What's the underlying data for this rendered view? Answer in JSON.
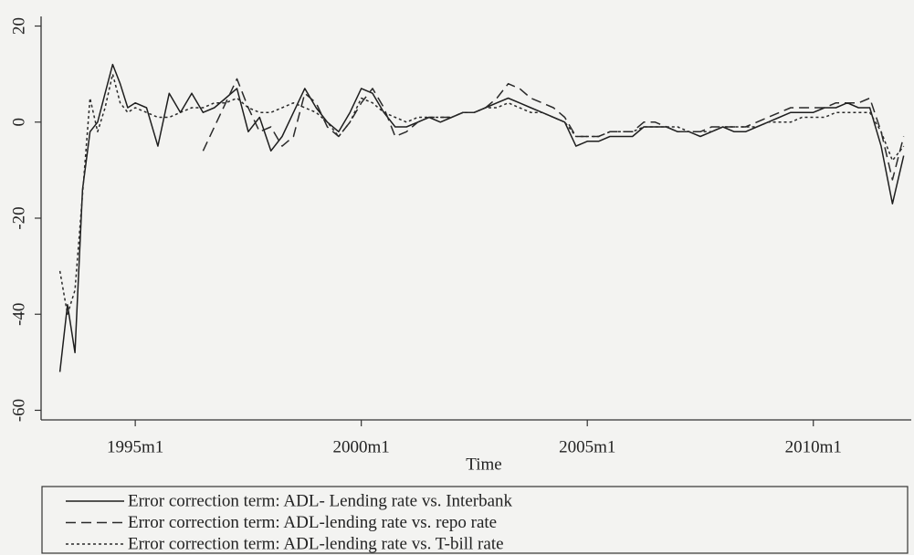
{
  "chart_data": {
    "type": "line",
    "x_label": "Time",
    "x": [
      "1993m5",
      "1993m7",
      "1993m9",
      "1993m11",
      "1994m1",
      "1994m3",
      "1994m5",
      "1994m7",
      "1994m9",
      "1994m11",
      "1995m1",
      "1995m4",
      "1995m7",
      "1995m10",
      "1996m1",
      "1996m4",
      "1996m7",
      "1996m10",
      "1997m1",
      "1997m4",
      "1997m7",
      "1997m10",
      "1998m1",
      "1998m4",
      "1998m7",
      "1998m10",
      "1999m1",
      "1999m4",
      "1999m7",
      "1999m10",
      "2000m1",
      "2000m4",
      "2000m7",
      "2000m10",
      "2001m1",
      "2001m4",
      "2001m7",
      "2001m10",
      "2002m1",
      "2002m4",
      "2002m7",
      "2002m10",
      "2003m1",
      "2003m4",
      "2003m7",
      "2003m10",
      "2004m1",
      "2004m4",
      "2004m7",
      "2004m10",
      "2005m1",
      "2005m4",
      "2005m7",
      "2005m10",
      "2006m1",
      "2006m4",
      "2006m7",
      "2006m10",
      "2007m1",
      "2007m4",
      "2007m7",
      "2007m10",
      "2008m1",
      "2008m4",
      "2008m7",
      "2008m10",
      "2009m1",
      "2009m4",
      "2009m7",
      "2009m10",
      "2010m1",
      "2010m4",
      "2010m7",
      "2010m10",
      "2011m1",
      "2011m4",
      "2011m7",
      "2011m10",
      "2012m1"
    ],
    "series": [
      {
        "name": "Error correction term: ADL- Lending rate vs. Interbank",
        "color": "#1e1e1e",
        "style": "solid",
        "values": [
          -52,
          -38,
          -48,
          -14,
          -2,
          0,
          6,
          12,
          8,
          3,
          4,
          3,
          -5,
          6,
          2,
          6,
          2,
          3,
          5,
          7,
          -2,
          1,
          -6,
          -3,
          2,
          7,
          3,
          0,
          -2,
          2,
          7,
          6,
          2,
          -1,
          -1,
          0,
          1,
          0,
          1,
          2,
          2,
          3,
          4,
          5,
          4,
          3,
          2,
          1,
          0,
          -5,
          -4,
          -4,
          -3,
          -3,
          -3,
          -1,
          -1,
          -1,
          -2,
          -2,
          -3,
          -2,
          -1,
          -2,
          -2,
          -1,
          0,
          1,
          2,
          2,
          2,
          3,
          3,
          4,
          3,
          3,
          -5,
          -17,
          -7
        ]
      },
      {
        "name": "Error correction term: ADL-lending rate vs. repo rate",
        "color": "#2a2a2a",
        "style": "dashed",
        "values": [
          null,
          null,
          null,
          null,
          null,
          null,
          null,
          null,
          null,
          null,
          null,
          null,
          null,
          null,
          null,
          null,
          -6,
          -1,
          4,
          9,
          3,
          -2,
          -1,
          -5,
          -3,
          6,
          4,
          -1,
          -3,
          0,
          4,
          7,
          3,
          -3,
          -2,
          0,
          1,
          1,
          1,
          2,
          2,
          3,
          5,
          8,
          7,
          5,
          4,
          3,
          1,
          -3,
          -3,
          -3,
          -2,
          -2,
          -2,
          0,
          0,
          -1,
          -2,
          -2,
          -2,
          -1,
          -1,
          -1,
          -1,
          0,
          1,
          2,
          3,
          3,
          3,
          3,
          4,
          4,
          4,
          5,
          -2,
          -12,
          -3
        ]
      },
      {
        "name": "Error correction term: ADL-lending rate vs. T-bill rate",
        "color": "#2a2a2a",
        "style": "dotted",
        "values": [
          -31,
          -40,
          -35,
          -15,
          5,
          -2,
          3,
          10,
          4,
          2,
          3,
          2,
          1,
          1,
          2,
          3,
          3,
          4,
          4,
          5,
          3,
          2,
          2,
          3,
          4,
          3,
          2,
          0,
          -3,
          0,
          5,
          4,
          2,
          1,
          0,
          1,
          1,
          1,
          1,
          2,
          2,
          3,
          3,
          4,
          3,
          2,
          2,
          1,
          0,
          -3,
          -3,
          -3,
          -2,
          -2,
          -2,
          -1,
          -1,
          -1,
          -1,
          -2,
          -2,
          -2,
          -1,
          -1,
          -1,
          -1,
          0,
          0,
          0,
          1,
          1,
          1,
          2,
          2,
          2,
          2,
          -2,
          -8,
          -5
        ]
      }
    ],
    "xlim": [
      "1992m12",
      "2012m3"
    ],
    "xticks": [
      "1995m1",
      "2000m1",
      "2005m1",
      "2010m1"
    ],
    "ylim": [
      -62,
      22
    ],
    "yticks": [
      -60,
      -40,
      -20,
      0,
      20
    ],
    "legend": "bottom"
  }
}
